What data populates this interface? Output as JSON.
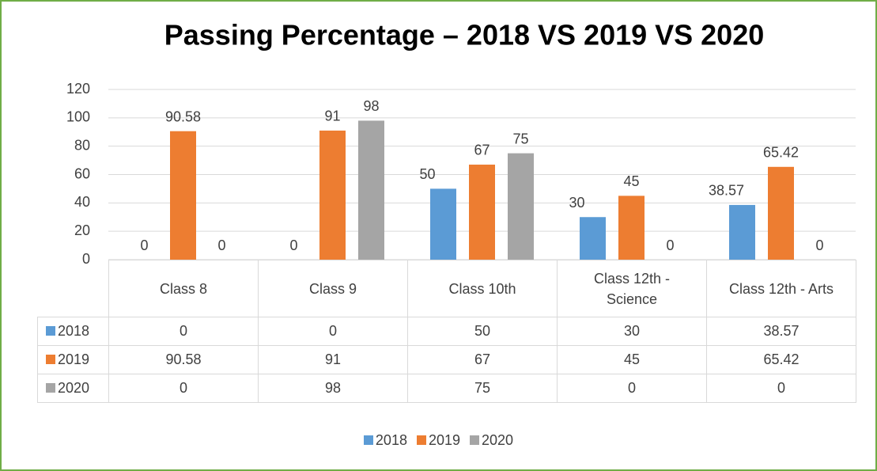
{
  "chart_data": {
    "type": "bar",
    "title": "Passing Percentage – 2018 VS 2019 VS 2020",
    "categories": [
      "Class 8",
      "Class 9",
      "Class 10th",
      "Class 12th - Science",
      "Class 12th - Arts"
    ],
    "series": [
      {
        "name": "2018",
        "color": "#5b9bd5",
        "values": [
          0,
          0,
          50,
          30,
          38.57
        ]
      },
      {
        "name": "2019",
        "color": "#ed7d31",
        "values": [
          90.58,
          91,
          67,
          45,
          65.42
        ]
      },
      {
        "name": "2020",
        "color": "#a5a5a5",
        "values": [
          0,
          98,
          75,
          0,
          0
        ]
      }
    ],
    "ylim": [
      0,
      120
    ],
    "yticks": [
      0,
      20,
      40,
      60,
      80,
      100,
      120
    ],
    "grid": true,
    "legend": "bottom"
  }
}
